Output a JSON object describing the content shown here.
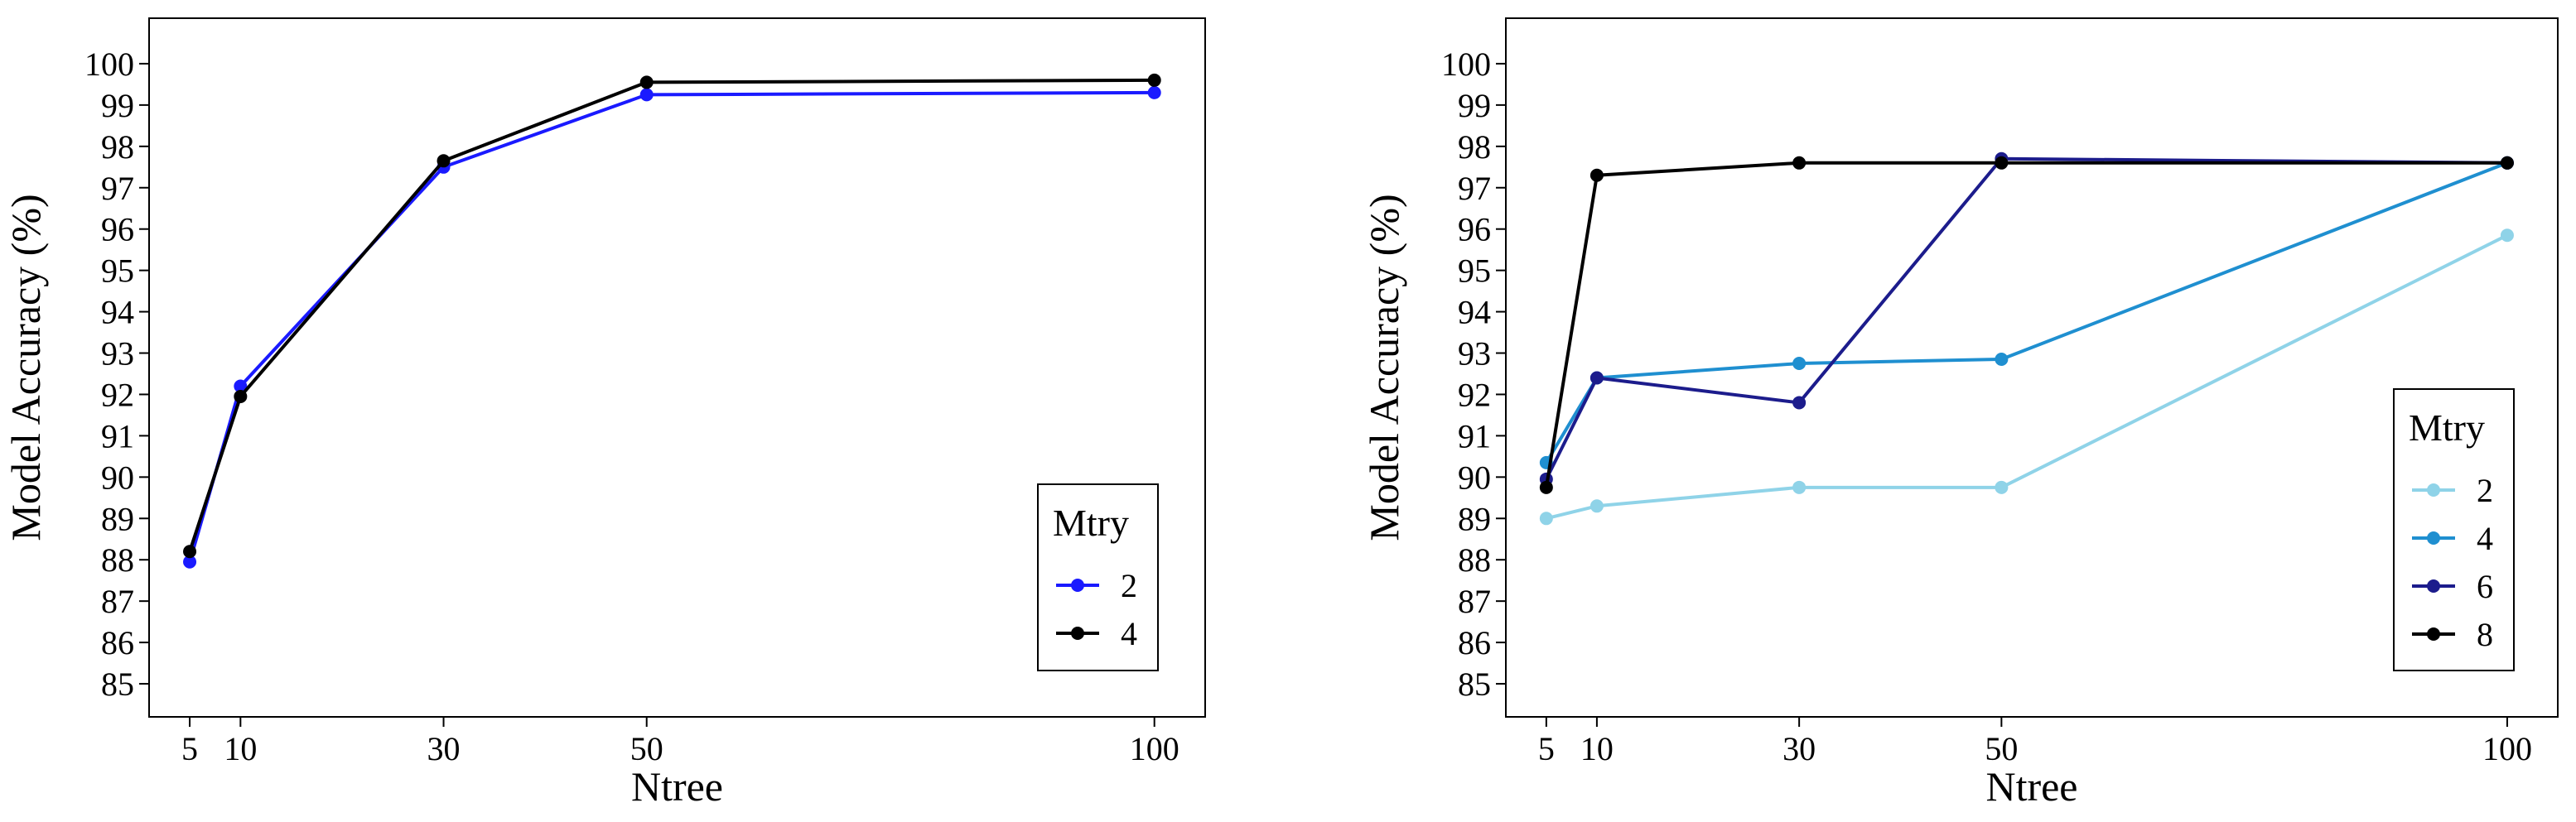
{
  "chart_data": [
    {
      "type": "line",
      "xlabel": "Ntree",
      "ylabel": "Model Accuracy (%)",
      "x": [
        5,
        10,
        30,
        50,
        100
      ],
      "xticks": [
        "5",
        "10",
        "30",
        "50",
        "100"
      ],
      "xlim": [
        1,
        105
      ],
      "ylim": [
        84.2,
        101.1
      ],
      "yticks": [
        "85",
        "86",
        "87",
        "88",
        "89",
        "90",
        "91",
        "92",
        "93",
        "94",
        "95",
        "96",
        "97",
        "98",
        "99",
        "100"
      ],
      "grid": false,
      "legend": {
        "title": "Mtry",
        "placement": "bottom-right"
      },
      "series": [
        {
          "name": "2",
          "color": "#1a1aff",
          "values": [
            87.95,
            92.2,
            97.5,
            99.25,
            99.3
          ]
        },
        {
          "name": "4",
          "color": "#000000",
          "values": [
            88.2,
            91.95,
            97.65,
            99.55,
            99.6
          ]
        }
      ]
    },
    {
      "type": "line",
      "xlabel": "Ntree",
      "ylabel": "Model Accuracy (%)",
      "x": [
        5,
        10,
        30,
        50,
        100
      ],
      "xticks": [
        "5",
        "10",
        "30",
        "50",
        "100"
      ],
      "xlim": [
        1,
        105
      ],
      "ylim": [
        84.2,
        101.1
      ],
      "yticks": [
        "85",
        "86",
        "87",
        "88",
        "89",
        "90",
        "91",
        "92",
        "93",
        "94",
        "95",
        "96",
        "97",
        "98",
        "99",
        "100"
      ],
      "grid": false,
      "legend": {
        "title": "Mtry",
        "placement": "bottom-right"
      },
      "series": [
        {
          "name": "2",
          "color": "#8fd3e8",
          "values": [
            89.0,
            89.3,
            89.75,
            89.75,
            95.85
          ]
        },
        {
          "name": "4",
          "color": "#1f8fd0",
          "values": [
            90.35,
            92.4,
            92.75,
            92.85,
            97.6
          ]
        },
        {
          "name": "6",
          "color": "#1c1c8c",
          "values": [
            89.95,
            92.4,
            91.8,
            97.7,
            97.6
          ]
        },
        {
          "name": "8",
          "color": "#000000",
          "values": [
            89.75,
            97.3,
            97.6,
            97.6,
            97.6
          ]
        }
      ]
    }
  ]
}
